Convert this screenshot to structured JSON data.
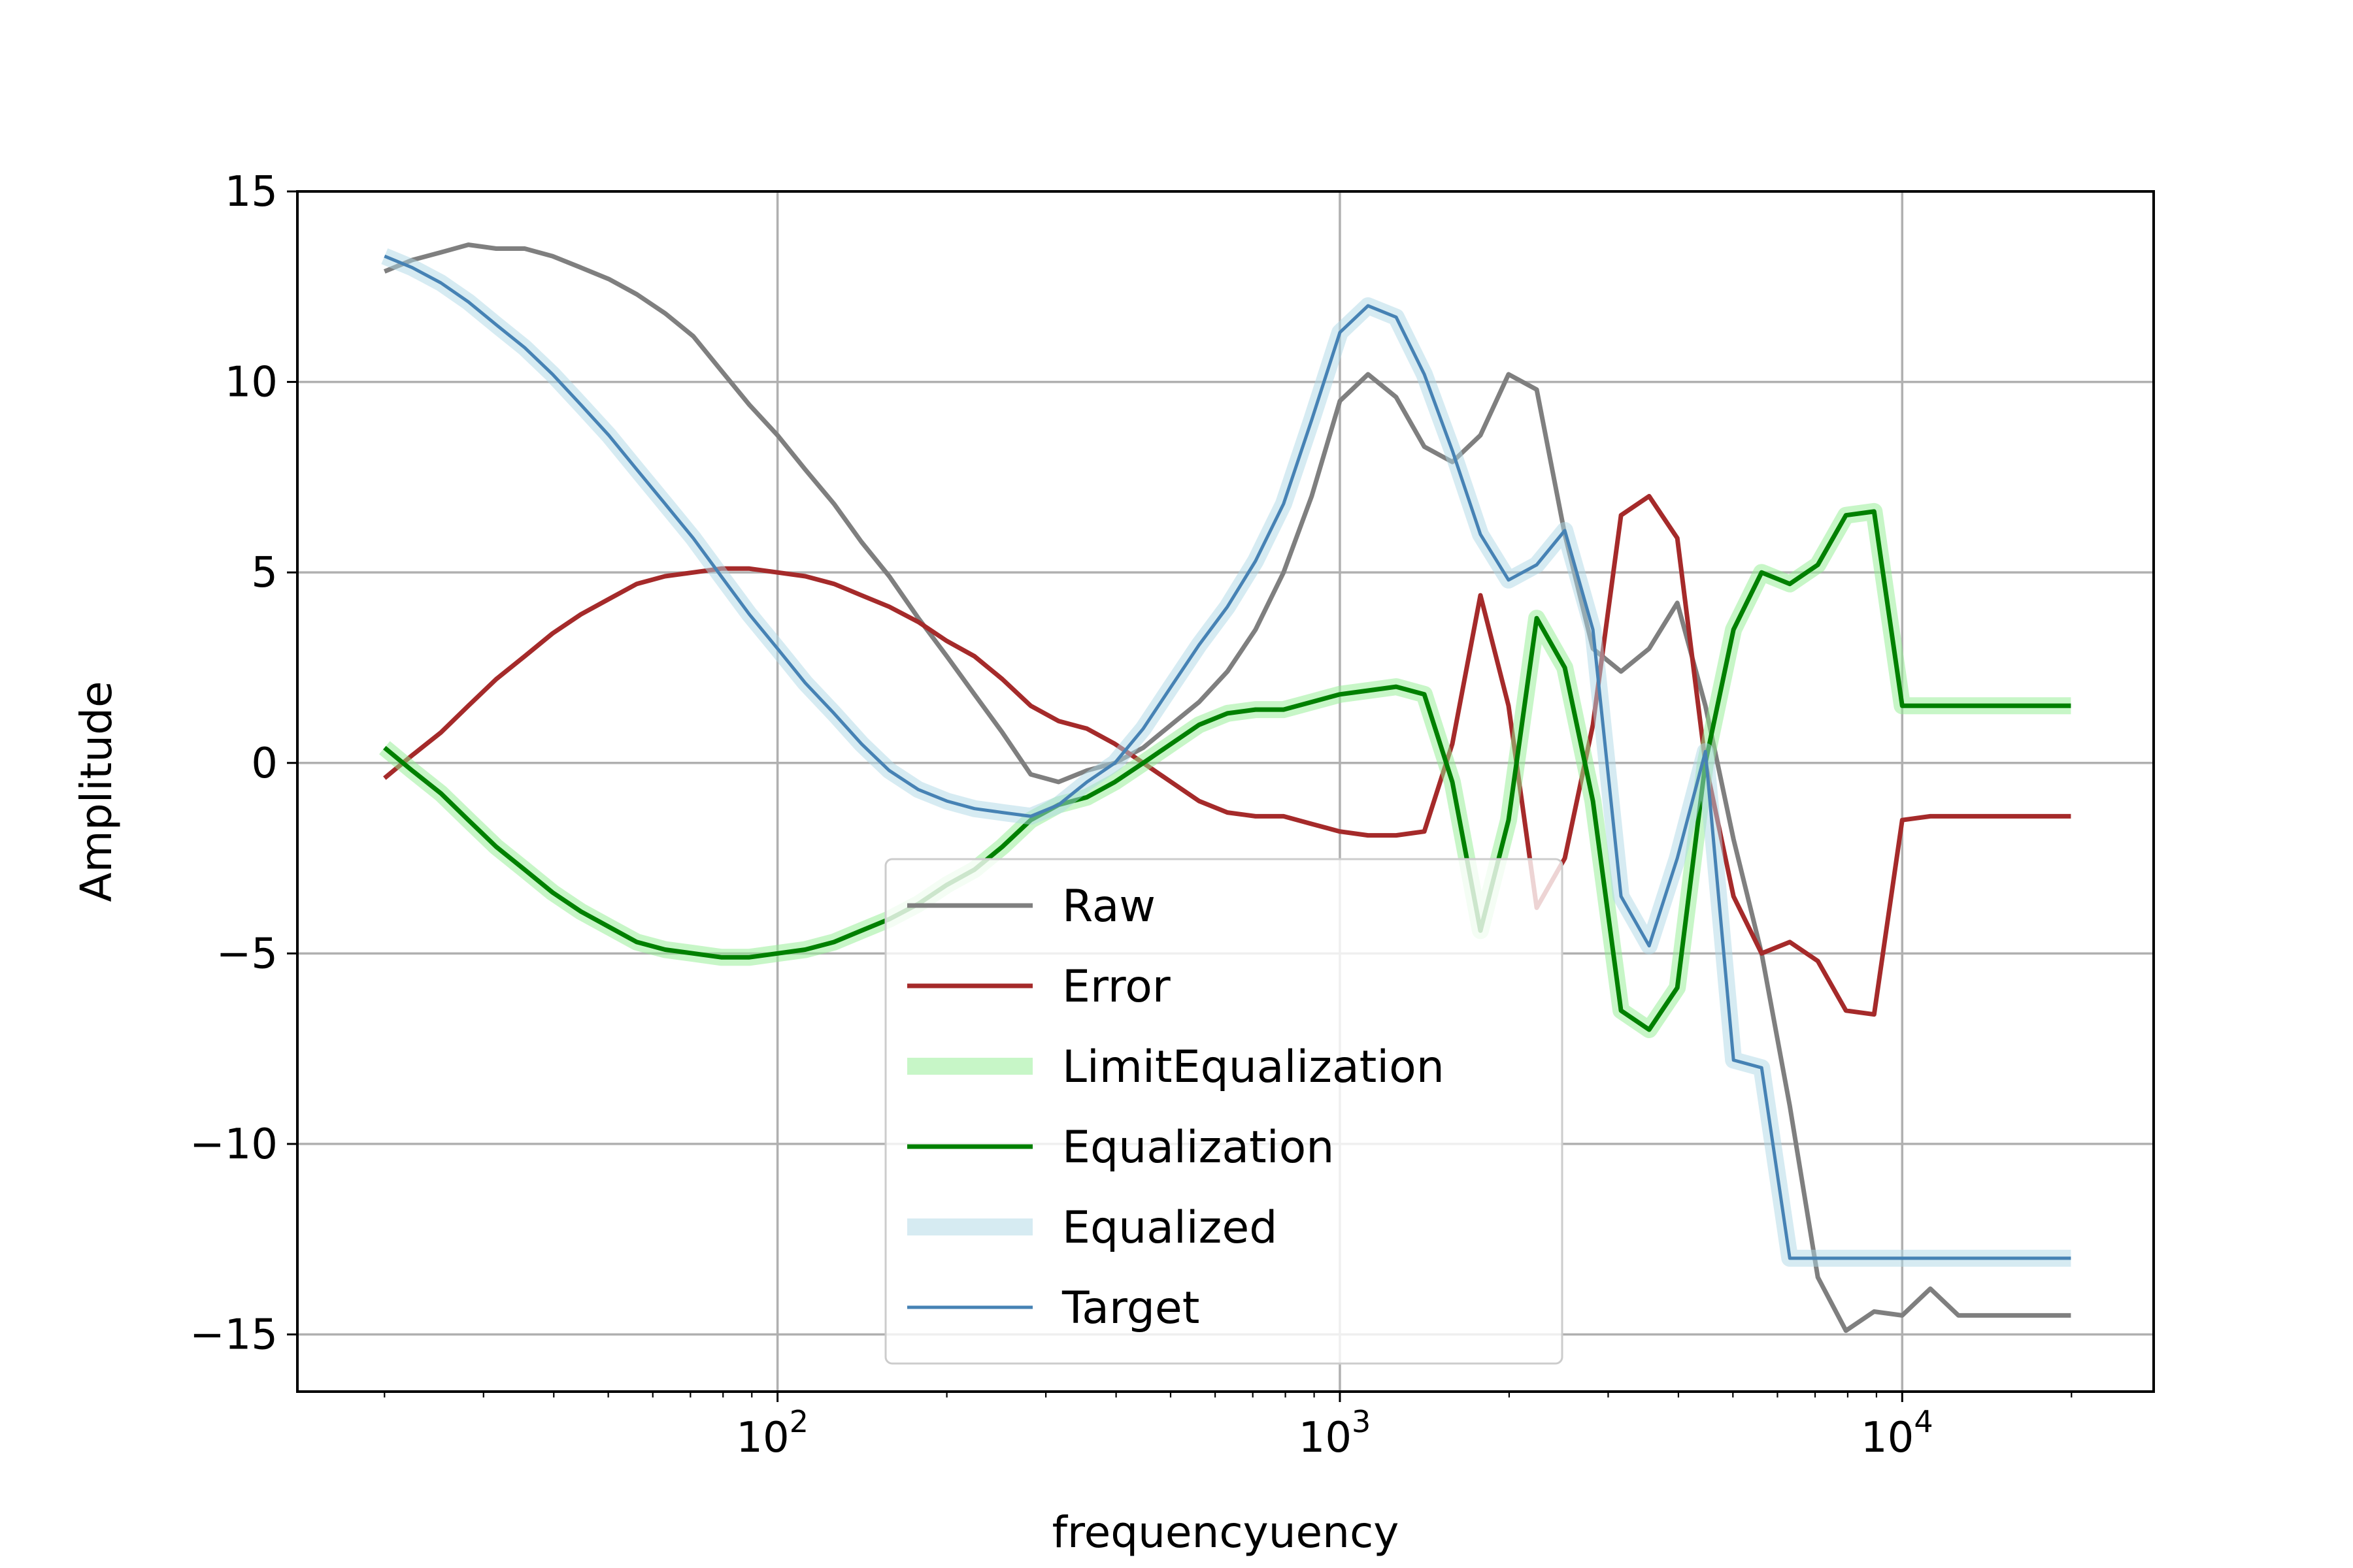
{
  "chart_data": {
    "type": "line",
    "xlabel": "frequencyuency",
    "ylabel": "Amplitude",
    "xscale": "log",
    "xlim": [
      14,
      28000
    ],
    "ylim": [
      -16.5,
      15
    ],
    "grid": true,
    "legend_position": "lower-center",
    "x_ticks": [
      {
        "value": 100,
        "base": "10",
        "exp": "2"
      },
      {
        "value": 1000,
        "base": "10",
        "exp": "3"
      },
      {
        "value": 10000,
        "base": "10",
        "exp": "4"
      }
    ],
    "y_ticks": [
      {
        "value": 15,
        "label": "15"
      },
      {
        "value": 10,
        "label": "10"
      },
      {
        "value": 5,
        "label": "5"
      },
      {
        "value": 0,
        "label": "0"
      },
      {
        "value": -5,
        "label": "−5"
      },
      {
        "value": -10,
        "label": "−10"
      },
      {
        "value": -15,
        "label": "−15"
      }
    ],
    "x": [
      20,
      22.4,
      25.2,
      28.2,
      31.6,
      35.5,
      39.8,
      44.7,
      50.1,
      56.2,
      63.1,
      70.8,
      79.4,
      89.1,
      100,
      112,
      126,
      141,
      158,
      178,
      200,
      224,
      251,
      282,
      316,
      355,
      398,
      447,
      501,
      562,
      631,
      708,
      794,
      891,
      1000,
      1122,
      1259,
      1413,
      1585,
      1778,
      1995,
      2239,
      2512,
      2818,
      3162,
      3548,
      3981,
      4467,
      5012,
      5623,
      6310,
      7079,
      7943,
      8913,
      10000,
      11220,
      12589,
      14125,
      15849,
      17783,
      19953
    ],
    "series": [
      {
        "name": "Raw",
        "color": "#7f7f7f",
        "style": "line",
        "values": [
          12.9,
          13.2,
          13.4,
          13.6,
          13.5,
          13.5,
          13.3,
          13.0,
          12.7,
          12.3,
          11.8,
          11.2,
          10.3,
          9.4,
          8.6,
          7.7,
          6.8,
          5.8,
          4.9,
          3.8,
          2.8,
          1.8,
          0.8,
          -0.3,
          -0.5,
          -0.2,
          0.0,
          0.4,
          1.0,
          1.6,
          2.4,
          3.5,
          5.0,
          7.0,
          9.5,
          10.2,
          9.6,
          8.3,
          7.9,
          8.6,
          10.2,
          9.8,
          6.0,
          3.0,
          2.4,
          3.0,
          4.2,
          1.5,
          -2.0,
          -5.0,
          -9.0,
          -13.5,
          -14.9,
          -14.4,
          -14.5,
          -13.8,
          -14.5,
          -14.5,
          -14.5,
          -14.5,
          -14.5
        ]
      },
      {
        "name": "Error",
        "color": "#a52a2a",
        "style": "line",
        "values": [
          -0.4,
          0.2,
          0.8,
          1.5,
          2.2,
          2.8,
          3.4,
          3.9,
          4.3,
          4.7,
          4.9,
          5.0,
          5.1,
          5.1,
          5.0,
          4.9,
          4.7,
          4.4,
          4.1,
          3.7,
          3.2,
          2.8,
          2.2,
          1.5,
          1.1,
          0.9,
          0.5,
          0.0,
          -0.5,
          -1.0,
          -1.3,
          -1.4,
          -1.4,
          -1.6,
          -1.8,
          -1.9,
          -1.9,
          -1.8,
          0.5,
          4.4,
          1.5,
          -3.8,
          -2.5,
          1.0,
          6.5,
          7.0,
          5.9,
          0.0,
          -3.5,
          -5.0,
          -4.7,
          -5.2,
          -6.5,
          -6.6,
          -1.5,
          -1.4,
          -1.4,
          -1.4,
          -1.4,
          -1.4,
          -1.4
        ]
      },
      {
        "name": "LimitEqualization",
        "color": "#90ee90",
        "style": "band",
        "values": [
          0.4,
          -0.2,
          -0.8,
          -1.5,
          -2.2,
          -2.8,
          -3.4,
          -3.9,
          -4.3,
          -4.7,
          -4.9,
          -5.0,
          -5.1,
          -5.1,
          -5.0,
          -4.9,
          -4.7,
          -4.4,
          -4.1,
          -3.7,
          -3.2,
          -2.8,
          -2.2,
          -1.5,
          -1.1,
          -0.9,
          -0.5,
          0.0,
          0.5,
          1.0,
          1.3,
          1.4,
          1.4,
          1.6,
          1.8,
          1.9,
          2.0,
          1.8,
          -0.5,
          -4.4,
          -1.5,
          3.8,
          2.5,
          -1.0,
          -6.5,
          -7.0,
          -5.9,
          0.0,
          3.5,
          5.0,
          4.7,
          5.2,
          6.5,
          6.6,
          1.5,
          1.5,
          1.5,
          1.5,
          1.5,
          1.5,
          1.5
        ]
      },
      {
        "name": "Equalization",
        "color": "#008000",
        "style": "line",
        "values": [
          0.4,
          -0.2,
          -0.8,
          -1.5,
          -2.2,
          -2.8,
          -3.4,
          -3.9,
          -4.3,
          -4.7,
          -4.9,
          -5.0,
          -5.1,
          -5.1,
          -5.0,
          -4.9,
          -4.7,
          -4.4,
          -4.1,
          -3.7,
          -3.2,
          -2.8,
          -2.2,
          -1.5,
          -1.1,
          -0.9,
          -0.5,
          0.0,
          0.5,
          1.0,
          1.3,
          1.4,
          1.4,
          1.6,
          1.8,
          1.9,
          2.0,
          1.8,
          -0.5,
          -4.4,
          -1.5,
          3.8,
          2.5,
          -1.0,
          -6.5,
          -7.0,
          -5.9,
          0.0,
          3.5,
          5.0,
          4.7,
          5.2,
          6.5,
          6.6,
          1.5,
          1.5,
          1.5,
          1.5,
          1.5,
          1.5,
          1.5
        ]
      },
      {
        "name": "Equalized",
        "color": "#add8e6",
        "style": "band",
        "values": [
          13.3,
          13.0,
          12.6,
          12.1,
          11.5,
          10.9,
          10.2,
          9.4,
          8.6,
          7.7,
          6.8,
          5.9,
          4.9,
          3.9,
          3.0,
          2.1,
          1.3,
          0.5,
          -0.2,
          -0.7,
          -1.0,
          -1.2,
          -1.3,
          -1.4,
          -1.1,
          -0.5,
          0.0,
          0.9,
          2.0,
          3.1,
          4.1,
          5.3,
          6.8,
          9.0,
          11.3,
          12.0,
          11.7,
          10.2,
          8.2,
          6.0,
          4.8,
          5.2,
          6.1,
          3.5,
          -3.5,
          -4.8,
          -2.5,
          0.3,
          -7.8,
          -8.0,
          -13.0,
          -13.0,
          -13.0,
          -13.0,
          -13.0,
          -13.0,
          -13.0,
          -13.0,
          -13.0,
          -13.0,
          -13.0
        ]
      },
      {
        "name": "Target",
        "color": "#4682b4",
        "style": "line",
        "values": [
          13.3,
          13.0,
          12.6,
          12.1,
          11.5,
          10.9,
          10.2,
          9.4,
          8.6,
          7.7,
          6.8,
          5.9,
          4.9,
          3.9,
          3.0,
          2.1,
          1.3,
          0.5,
          -0.2,
          -0.7,
          -1.0,
          -1.2,
          -1.3,
          -1.4,
          -1.1,
          -0.5,
          0.0,
          0.9,
          2.0,
          3.1,
          4.1,
          5.3,
          6.8,
          9.0,
          11.3,
          12.0,
          11.7,
          10.2,
          8.2,
          6.0,
          4.8,
          5.2,
          6.1,
          3.5,
          -3.5,
          -4.8,
          -2.5,
          0.3,
          -7.8,
          -8.0,
          -13.0,
          -13.0,
          -13.0,
          -13.0,
          -13.0,
          -13.0,
          -13.0,
          -13.0,
          -13.0,
          -13.0,
          -13.0
        ]
      }
    ]
  }
}
